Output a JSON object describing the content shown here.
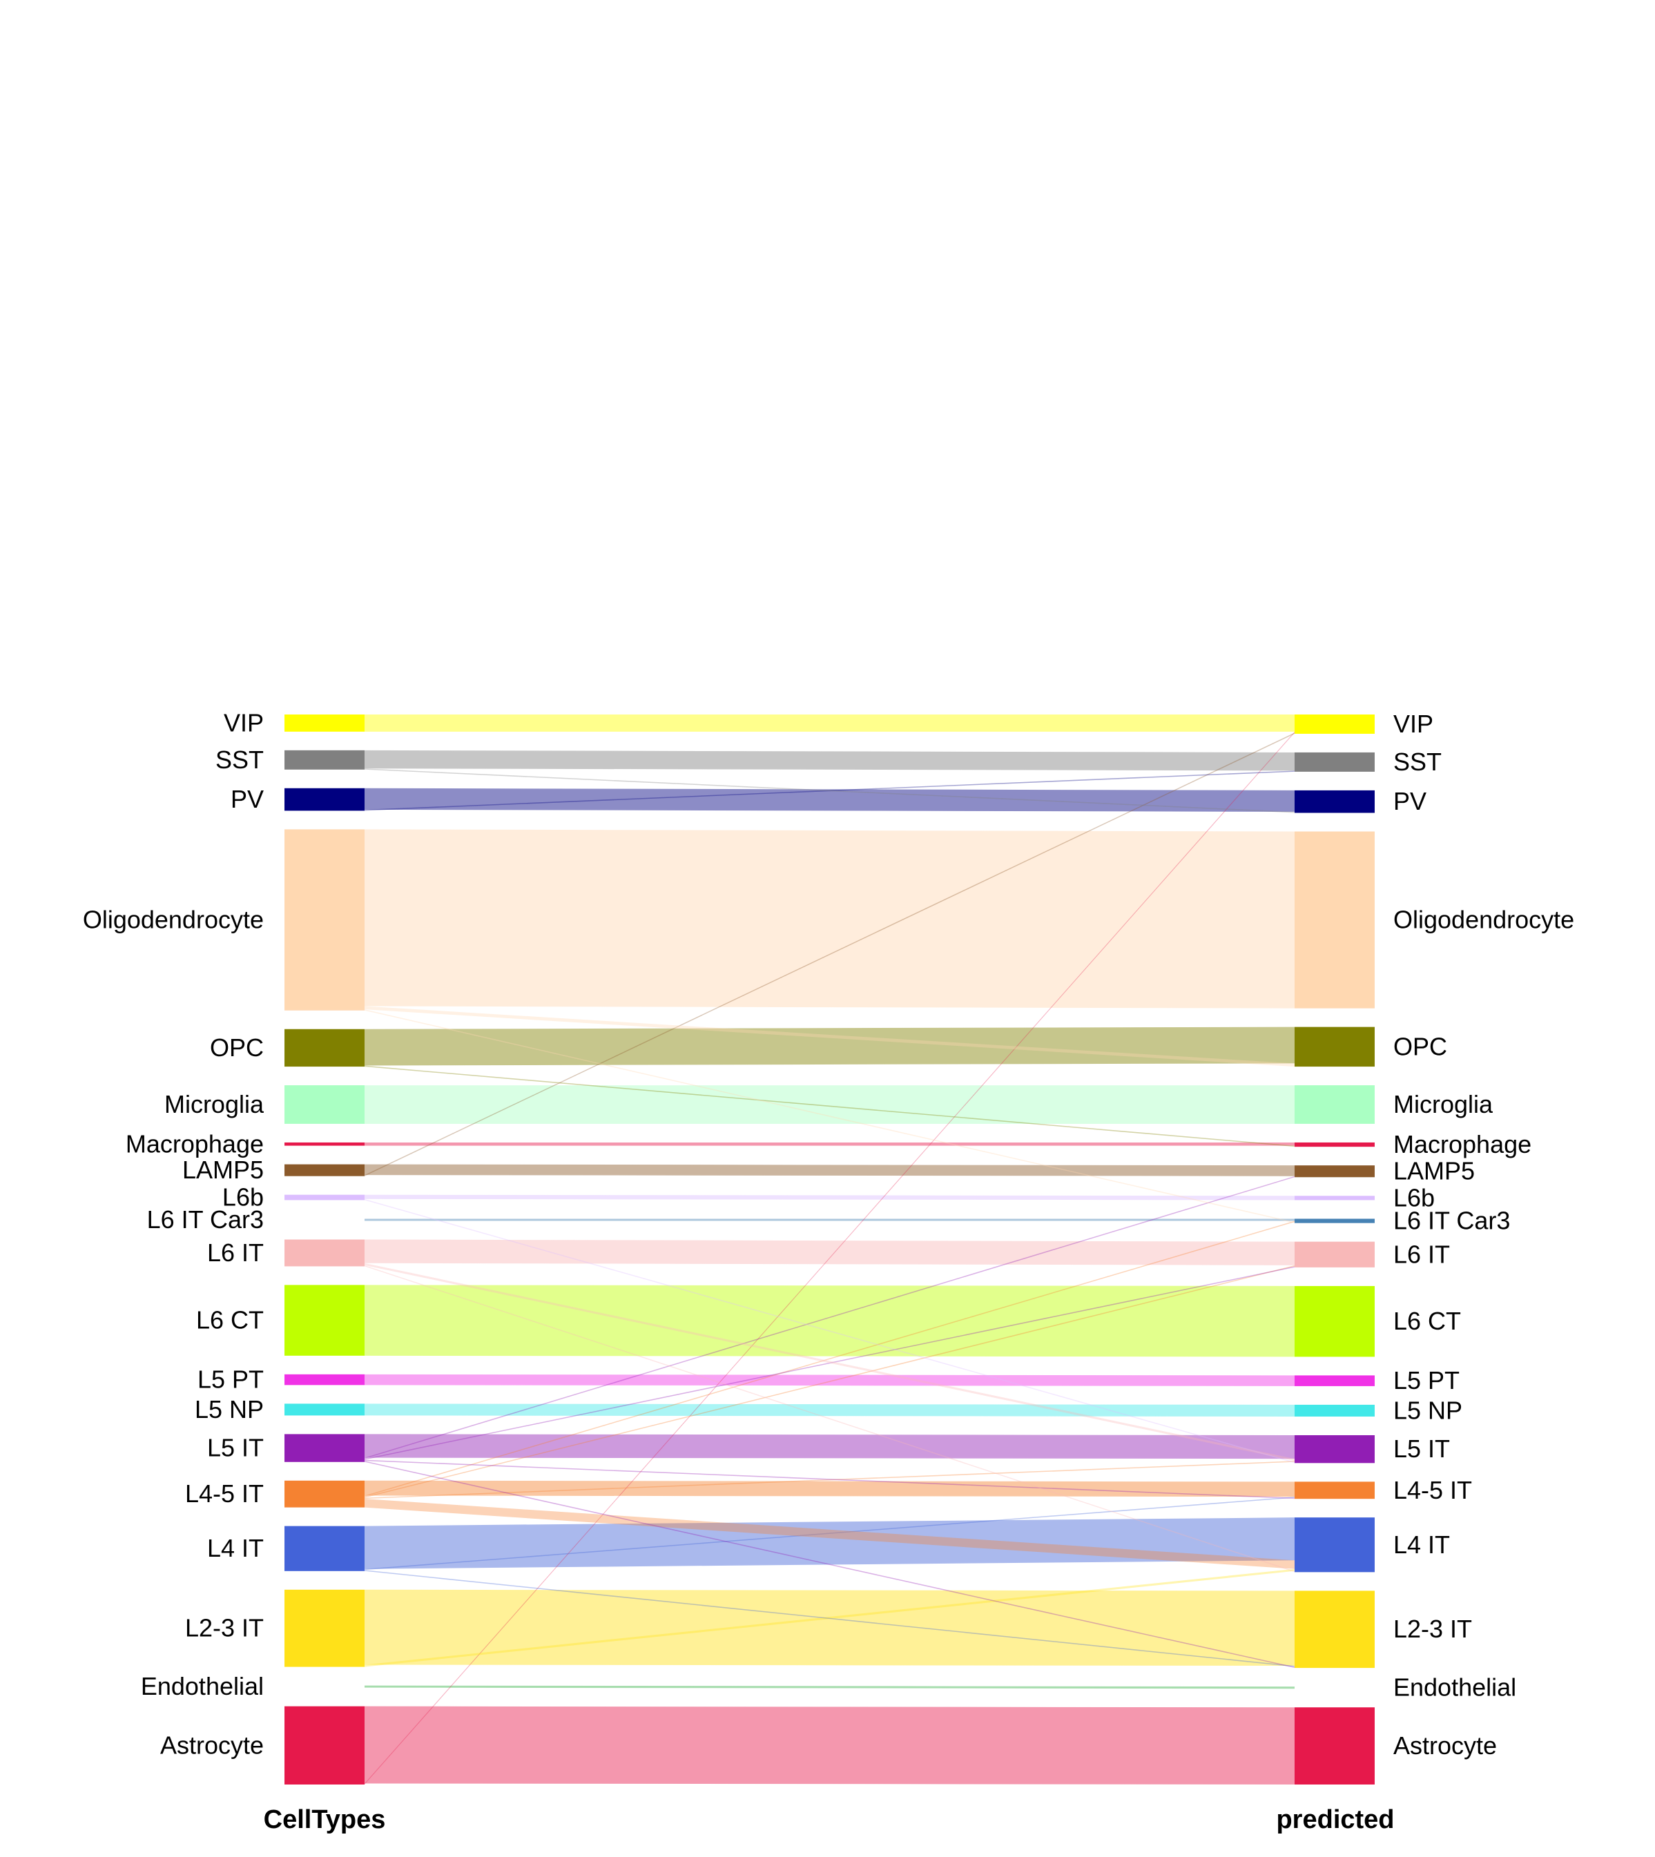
{
  "chart_data": {
    "type": "sankey",
    "axes": [
      "CellTypes",
      "predicted"
    ],
    "categories": [
      "VIP",
      "SST",
      "PV",
      "Oligodendrocyte",
      "OPC",
      "Microglia",
      "Macrophage",
      "LAMP5",
      "L6b",
      "L6 IT Car3",
      "L6 IT",
      "L6 CT",
      "L5 PT",
      "L5 NP",
      "L5 IT",
      "L4-5 IT",
      "L4 IT",
      "L2-3 IT",
      "Endothelial",
      "Astrocyte"
    ],
    "colors": {
      "VIP": "#FFFF00",
      "SST": "#808080",
      "PV": "#000080",
      "Oligodendrocyte": "#FFD8B1",
      "OPC": "#808000",
      "Microglia": "#AAFFC3",
      "Macrophage": "#E6194B",
      "LAMP5": "#8B5A2B",
      "L6b": "#DCBEFF",
      "L6 IT Car3": "#4682B4",
      "L6 IT": "#F8B8B8",
      "L6 CT": "#BFFF00",
      "L5 PT": "#F032E6",
      "L5 NP": "#42E8E8",
      "L5 IT": "#911EB4",
      "L4-5 IT": "#F58231",
      "L4 IT": "#4363D8",
      "L2-3 IT": "#FFE119",
      "Endothelial": "#3CB44B",
      "Astrocyte": "#E6194B"
    },
    "flows": [
      {
        "from": "VIP",
        "to": "VIP",
        "value": 16
      },
      {
        "from": "SST",
        "to": "SST",
        "value": 17
      },
      {
        "from": "PV",
        "to": "PV",
        "value": 20
      },
      {
        "from": "Oligodendrocyte",
        "to": "Oligodendrocyte",
        "value": 165
      },
      {
        "from": "OPC",
        "to": "OPC",
        "value": 34
      },
      {
        "from": "Microglia",
        "to": "Microglia",
        "value": 36
      },
      {
        "from": "Macrophage",
        "to": "Macrophage",
        "value": 3
      },
      {
        "from": "LAMP5",
        "to": "LAMP5",
        "value": 10
      },
      {
        "from": "L6b",
        "to": "L6b",
        "value": 4
      },
      {
        "from": "L6 IT Car3",
        "to": "L6 IT Car3",
        "value": 2
      },
      {
        "from": "L6 IT",
        "to": "L6 IT",
        "value": 22
      },
      {
        "from": "L6 CT",
        "to": "L6 CT",
        "value": 66
      },
      {
        "from": "L5 PT",
        "to": "L5 PT",
        "value": 10
      },
      {
        "from": "L5 NP",
        "to": "L5 NP",
        "value": 11
      },
      {
        "from": "L5 IT",
        "to": "L5 IT",
        "value": 22
      },
      {
        "from": "L4-5 IT",
        "to": "L4-5 IT",
        "value": 14
      },
      {
        "from": "L4 IT",
        "to": "L4 IT",
        "value": 40
      },
      {
        "from": "L2-3 IT",
        "to": "L2-3 IT",
        "value": 70
      },
      {
        "from": "Endothelial",
        "to": "Endothelial",
        "value": 2
      },
      {
        "from": "Astrocyte",
        "to": "Astrocyte",
        "value": 72
      },
      {
        "from": "Oligodendrocyte",
        "to": "OPC",
        "value": 3
      },
      {
        "from": "L4-5 IT",
        "to": "L4 IT",
        "value": 8
      },
      {
        "from": "L2-3 IT",
        "to": "L4 IT",
        "value": 2
      },
      {
        "from": "L6 IT",
        "to": "L5 IT",
        "value": 2
      },
      {
        "from": "L4 IT",
        "to": "L4-5 IT",
        "value": 1
      },
      {
        "from": "L5 IT",
        "to": "L4-5 IT",
        "value": 1
      },
      {
        "from": "L4-5 IT",
        "to": "L5 IT",
        "value": 1
      },
      {
        "from": "L6 IT",
        "to": "L4 IT",
        "value": 1
      },
      {
        "from": "L4-5 IT",
        "to": "L6 IT",
        "value": 1
      },
      {
        "from": "L5 IT",
        "to": "L6 IT",
        "value": 1
      },
      {
        "from": "L4-5 IT",
        "to": "L6 IT Car3",
        "value": 1
      },
      {
        "from": "L5 IT",
        "to": "LAMP5",
        "value": 1
      },
      {
        "from": "L6b",
        "to": "L5 IT",
        "value": 1
      },
      {
        "from": "L4 IT",
        "to": "L2-3 IT",
        "value": 1
      },
      {
        "from": "L5 IT",
        "to": "L2-3 IT",
        "value": 1
      },
      {
        "from": "Astrocyte",
        "to": "VIP",
        "value": 1
      },
      {
        "from": "LAMP5",
        "to": "VIP",
        "value": 1
      },
      {
        "from": "SST",
        "to": "PV",
        "value": 1
      },
      {
        "from": "PV",
        "to": "SST",
        "value": 1
      },
      {
        "from": "Oligodendrocyte",
        "to": "L6 IT Car3",
        "value": 1
      },
      {
        "from": "OPC",
        "to": "Macrophage",
        "value": 1
      }
    ]
  }
}
